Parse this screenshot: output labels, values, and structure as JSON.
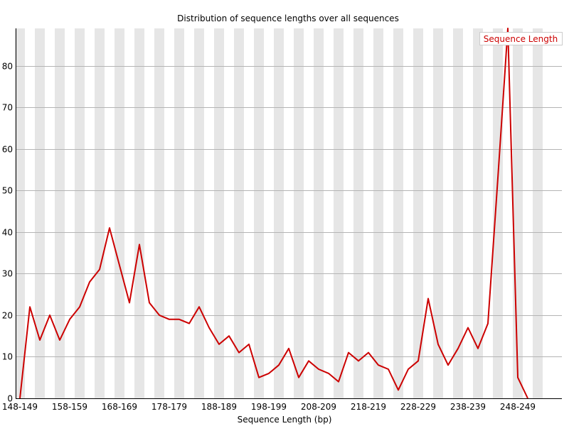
{
  "chart_data": {
    "type": "line",
    "title": "Distribution of sequence lengths over all sequences",
    "xlabel": "Sequence Length (bp)",
    "ylabel": "",
    "ylim": [
      0,
      89
    ],
    "yticks": [
      0,
      10,
      20,
      30,
      40,
      50,
      60,
      70,
      80
    ],
    "grid": true,
    "legend_position": "top-right",
    "categories": [
      "148-149",
      "150-151",
      "152-153",
      "154-155",
      "156-157",
      "158-159",
      "160-161",
      "162-163",
      "164-165",
      "166-167",
      "168-169",
      "170-171",
      "172-173",
      "174-175",
      "176-177",
      "178-179",
      "180-181",
      "182-183",
      "184-185",
      "186-187",
      "188-189",
      "190-191",
      "192-193",
      "194-195",
      "196-197",
      "198-199",
      "200-201",
      "202-203",
      "204-205",
      "206-207",
      "208-209",
      "210-211",
      "212-213",
      "214-215",
      "216-217",
      "218-219",
      "220-221",
      "222-223",
      "224-225",
      "226-227",
      "228-229",
      "230-231",
      "232-233",
      "234-235",
      "236-237",
      "238-239",
      "240-241",
      "242-243",
      "244-245",
      "246-247",
      "248-249",
      "250-251",
      "252-253"
    ],
    "x_tick_labels": [
      "148-149",
      "158-159",
      "168-169",
      "178-179",
      "188-189",
      "198-199",
      "208-209",
      "218-219",
      "228-229",
      "238-239",
      "248-249"
    ],
    "series": [
      {
        "name": "Sequence Length",
        "color": "#cc0000",
        "values": [
          0,
          22,
          14,
          20,
          14,
          19,
          22,
          28,
          31,
          41,
          32,
          23,
          37,
          23,
          20,
          19,
          19,
          18,
          22,
          17,
          13,
          15,
          11,
          13,
          5,
          6,
          8,
          12,
          5,
          9,
          7,
          6,
          4,
          11,
          9,
          11,
          8,
          7,
          2,
          7,
          9,
          24,
          13,
          8,
          12,
          17,
          12,
          18,
          53,
          89,
          5,
          0,
          null
        ]
      }
    ]
  }
}
